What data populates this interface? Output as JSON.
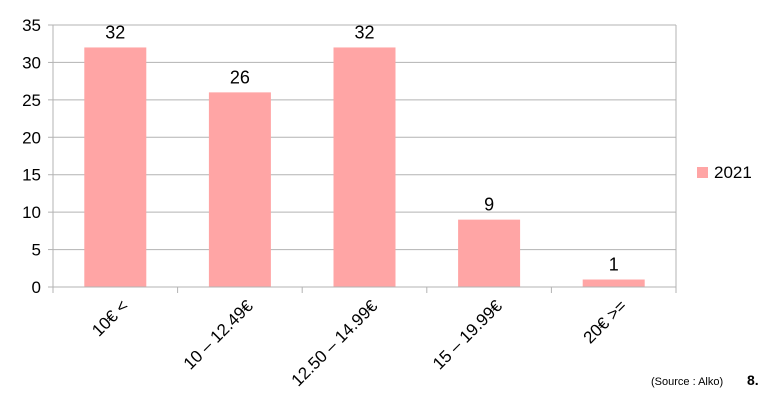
{
  "chart_data": {
    "type": "bar",
    "categories": [
      "10€ <",
      "10 – 12.49€",
      "12.50 – 14.99€",
      "15 – 19.99€",
      "20€ >="
    ],
    "series": [
      {
        "name": "2021",
        "values": [
          32,
          26,
          32,
          9,
          1
        ],
        "color": "#ffa5a5"
      }
    ],
    "ylim": [
      0,
      35
    ],
    "yticks": [
      0,
      5,
      10,
      15,
      20,
      25,
      30,
      35
    ],
    "grid": true,
    "legend_position": "right",
    "title": "",
    "xlabel": "",
    "ylabel": ""
  },
  "footer": {
    "source": "(Source : Alko)",
    "page_number": "8."
  }
}
